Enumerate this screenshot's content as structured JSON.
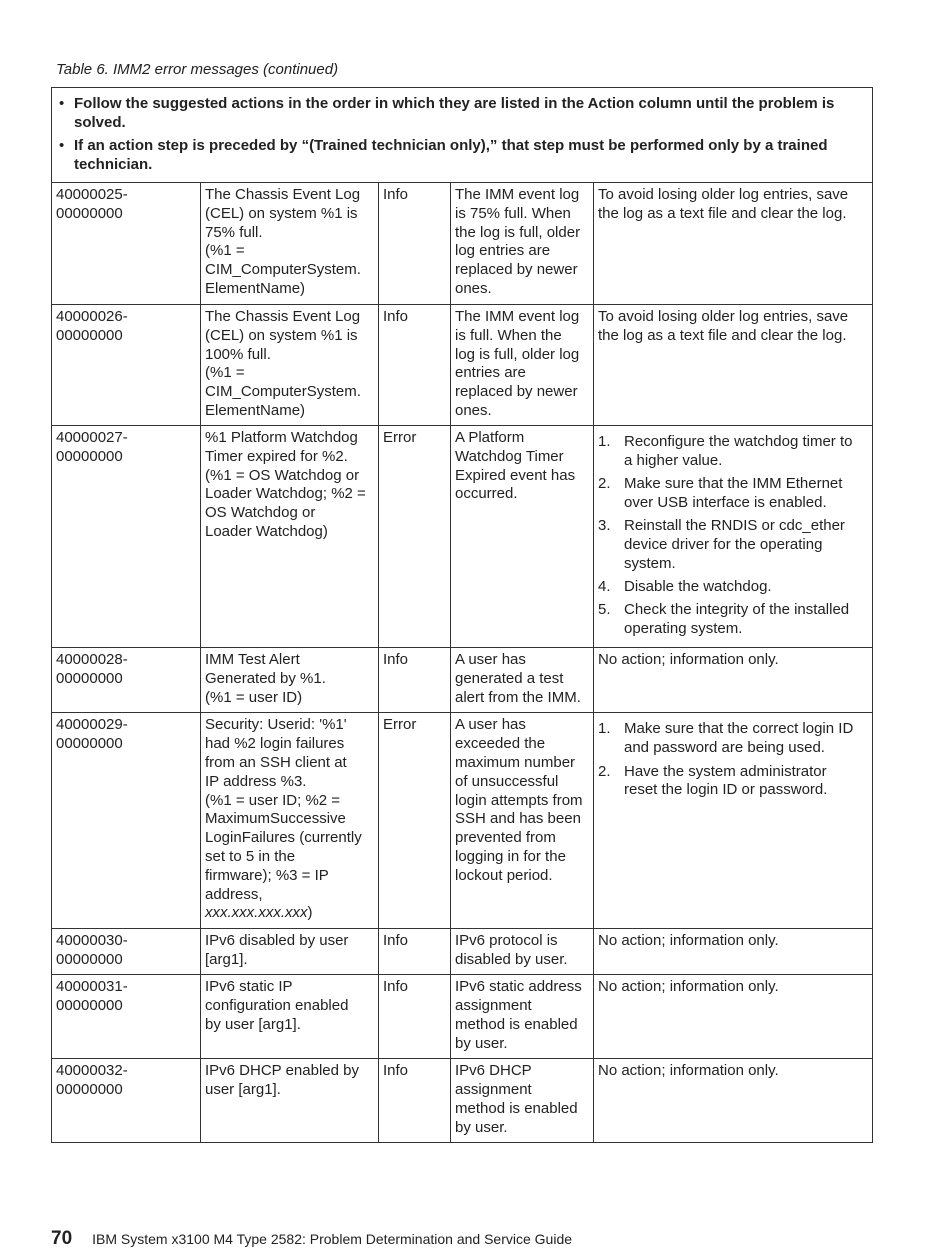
{
  "caption": "Table 6. IMM2 error messages  (continued)",
  "notes": [
    "Follow the suggested actions in the order in which they are listed in the Action column until the problem is solved.",
    "If an action step is preceded by “(Trained technician only),” that step must be performed only by a trained technician."
  ],
  "rows": [
    {
      "id": "40000025-\n00000000",
      "desc": "The Chassis Event Log\n(CEL) on system %1 is\n75% full.\n(%1 =\nCIM_ComputerSystem.\nElementName)",
      "severity": "Info",
      "explanation": "The IMM event log\nis 75% full. When\nthe log is full, older\nlog entries are\nreplaced by newer\nones.",
      "action": "To avoid losing older log entries, save\nthe log as a text file and clear the log."
    },
    {
      "id": "40000026-\n00000000",
      "desc": "The Chassis Event Log\n(CEL) on system %1 is\n100% full.\n(%1 =\nCIM_ComputerSystem.\nElementName)",
      "severity": "Info",
      "explanation": "The IMM event log\nis full. When the\nlog is full, older log\nentries are\nreplaced by newer\nones.",
      "action": "To avoid losing older log entries, save\nthe log as a text file and clear the log."
    },
    {
      "id": "40000027-\n00000000",
      "desc": "%1 Platform Watchdog\nTimer expired for %2.\n(%1 = OS Watchdog or\nLoader Watchdog; %2 =\nOS Watchdog or\nLoader Watchdog)",
      "severity": "Error",
      "explanation": "A Platform\nWatchdog Timer\nExpired event has\noccurred.",
      "actions": [
        "Reconfigure the watchdog timer to\na higher value.",
        "Make sure that the IMM Ethernet\nover USB interface is enabled.",
        "Reinstall the RNDIS or cdc_ether\ndevice driver for the operating\nsystem.",
        "Disable the watchdog.",
        "Check the integrity of the installed\noperating system."
      ]
    },
    {
      "id": "40000028-\n00000000",
      "desc": "IMM Test Alert\nGenerated by %1.\n(%1 = user ID)",
      "severity": "Info",
      "explanation": "A user has\ngenerated a test\nalert from the IMM.",
      "action": "No action; information only."
    },
    {
      "id": "40000029-\n00000000",
      "desc": "Security: Userid: '%1'\nhad %2 login failures\nfrom an SSH client at\nIP address %3.\n(%1 = user ID; %2 =\nMaximumSuccessive\nLoginFailures (currently\nset to 5 in the\nfirmware); %3 = IP\naddress,\n",
      "desc_italic": "xxx.xxx.xxx.xxx",
      "desc_tail": ")",
      "severity": "Error",
      "explanation": "A user has\nexceeded the\nmaximum number\nof unsuccessful\nlogin attempts from\nSSH and has been\nprevented from\nlogging in for the\nlockout period.",
      "actions": [
        "Make sure that the correct login ID\nand password are being used.",
        "Have the system administrator\nreset the login ID or password."
      ]
    },
    {
      "id": "40000030-\n00000000",
      "desc": "IPv6 disabled by user\n[arg1].",
      "severity": "Info",
      "explanation": "IPv6 protocol is\ndisabled by user.",
      "action": "No action; information only."
    },
    {
      "id": "40000031-\n00000000",
      "desc": "IPv6 static IP\nconfiguration enabled\nby user [arg1].",
      "severity": "Info",
      "explanation": "IPv6 static address\nassignment\nmethod is enabled\nby user.",
      "action": "No action; information only."
    },
    {
      "id": "40000032-\n00000000",
      "desc": "IPv6 DHCP enabled by\nuser [arg1].",
      "severity": "Info",
      "explanation": "IPv6 DHCP\nassignment\nmethod is enabled\nby user.",
      "action": "No action; information only."
    }
  ],
  "footer": {
    "page_number": "70",
    "title": "IBM System x3100 M4 Type 2582:  Problem Determination and Service Guide"
  }
}
